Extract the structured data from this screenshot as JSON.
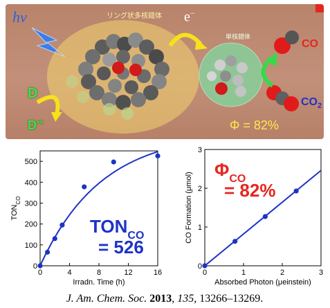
{
  "scheme": {
    "hv_label": "hv",
    "electron_label": "e",
    "electron_sup": "−",
    "ring_complex_label": "リング状多核錯体",
    "mononuclear_label": "単核錯体",
    "co_label": "CO",
    "co2_label": "CO",
    "co2_sub": "2",
    "donor_label": "D",
    "donor_ox_label": "D",
    "donor_ox_sup": "•+",
    "quantum_yield_label": "Φ = 82%",
    "colors": {
      "accent_red": "#e5261f",
      "accent_blue": "#1d33c6",
      "arrow_yellow": "#f6e21a",
      "arrow_green": "#36d94a"
    }
  },
  "chart_data": [
    {
      "type": "scatter",
      "title": "",
      "xlabel": "Irradn. Time (h)",
      "ylabel": "TON",
      "ylabel_sub": "CO",
      "xlim": [
        0,
        16
      ],
      "ylim": [
        0,
        550
      ],
      "xticks": [
        "0",
        "4",
        "8",
        "12",
        "16"
      ],
      "yticks": [
        "0",
        "100",
        "200",
        "300",
        "400",
        "500"
      ],
      "points": [
        {
          "x": 0,
          "y": 0
        },
        {
          "x": 1,
          "y": 65
        },
        {
          "x": 2,
          "y": 130
        },
        {
          "x": 3,
          "y": 195
        },
        {
          "x": 6,
          "y": 378
        },
        {
          "x": 10,
          "y": 497
        },
        {
          "x": 16,
          "y": 526
        }
      ],
      "fit": "saturation",
      "fit_curve": {
        "type": "exponential_saturation",
        "max": 640,
        "rate": 0.12
      },
      "annotation": {
        "main": "TON",
        "sub": "CO",
        "line2": "= 526"
      },
      "grid": false,
      "color": "#1d33c6"
    },
    {
      "type": "scatter",
      "title": "",
      "xlabel": "Absorbed Photon (μeinstein)",
      "ylabel": "CO Formation (μmol)",
      "xlim": [
        0,
        3
      ],
      "ylim": [
        0,
        3
      ],
      "xticks": [
        "0",
        "1",
        "2",
        "3"
      ],
      "yticks": [
        "0",
        "1",
        "2",
        "3"
      ],
      "points": [
        {
          "x": 0,
          "y": 0
        },
        {
          "x": 0.78,
          "y": 0.63
        },
        {
          "x": 1.56,
          "y": 1.27
        },
        {
          "x": 2.36,
          "y": 1.93
        }
      ],
      "fit": "linear",
      "fit_line": {
        "slope": 0.82
      },
      "annotation": {
        "main": "Φ",
        "sub": "CO",
        "line2": "= 82%"
      },
      "grid": false,
      "color": "#1d33c6",
      "annotation_color": "#e5261f"
    }
  ],
  "citation": {
    "journal": "J. Am. Chem. Soc.",
    "year": "2013",
    "volume": "135",
    "pages": "13266–13269."
  }
}
